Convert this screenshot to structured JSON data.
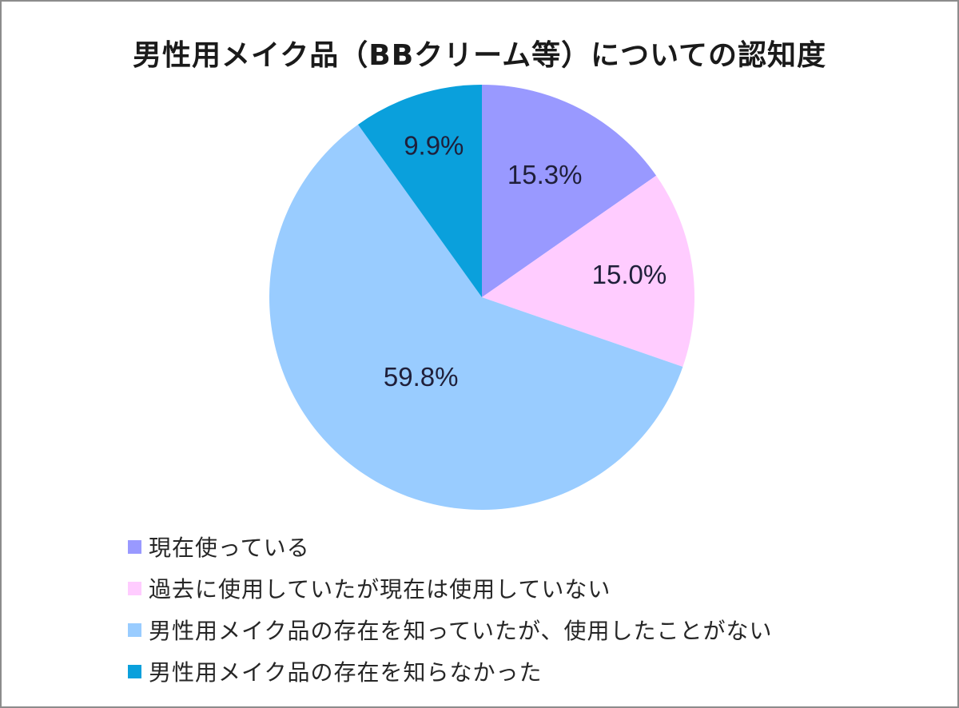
{
  "chart_data": {
    "type": "pie",
    "title": "男性用メイク品（BBクリーム等）についての認知度",
    "start_angle_deg": 0,
    "direction": "clockwise",
    "legend_position": "bottom-left",
    "slices": [
      {
        "label": "現在使っている",
        "value": 15.3,
        "display": "15.3%",
        "color": "#9999ff"
      },
      {
        "label": "過去に使用していたが現在は使用していない",
        "value": 15.0,
        "display": "15.0%",
        "color": "#ffccff"
      },
      {
        "label": "男性用メイク品の存在を知っていたが、使用したことがない",
        "value": 59.8,
        "display": "59.8%",
        "color": "#99ccff"
      },
      {
        "label": "男性用メイク品の存在を知らなかった",
        "value": 9.9,
        "display": "9.9%",
        "color": "#0aa0dc"
      }
    ]
  }
}
